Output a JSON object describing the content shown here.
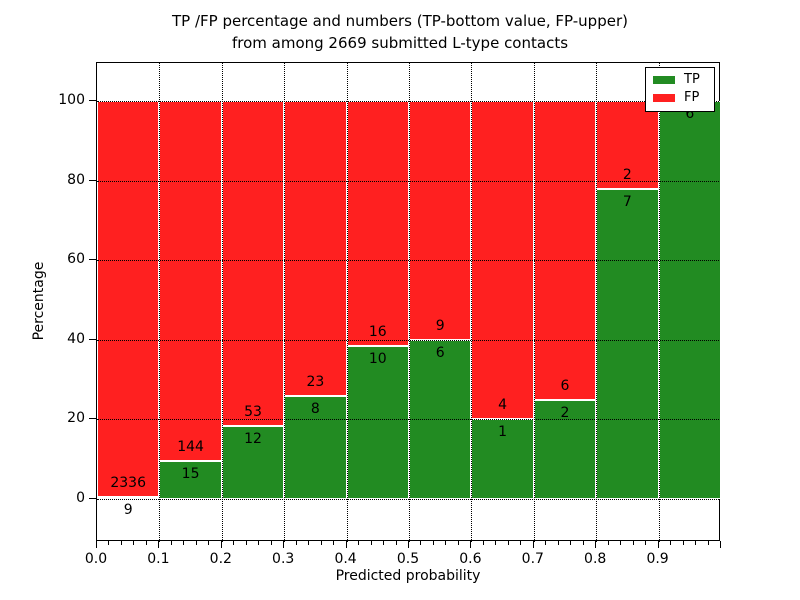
{
  "title": {
    "line1": "TP /FP percentage and numbers (TP-bottom value, FP-upper)",
    "line2": "from among 2669 submitted L-type contacts"
  },
  "axes": {
    "xlabel": "Predicted probability",
    "ylabel": "Percentage",
    "x_tick_labels": [
      "0.0",
      "0.1",
      "0.2",
      "0.3",
      "0.4",
      "0.5",
      "0.6",
      "0.7",
      "0.8",
      "0.9"
    ],
    "y_tick_labels": [
      "0",
      "20",
      "40",
      "60",
      "80",
      "100"
    ],
    "y_tick_values": [
      0,
      20,
      40,
      60,
      80,
      100
    ]
  },
  "legend": {
    "position": "upper right",
    "items": [
      {
        "label": "TP",
        "color": "#228b22"
      },
      {
        "label": "FP",
        "color": "#ff2020"
      }
    ]
  },
  "colors": {
    "tp_green": "#228b22",
    "fp_red": "#ff2020",
    "grid": "#000000",
    "bar_edge": "#ffffff"
  },
  "chart_data": {
    "type": "bar",
    "stacked": true,
    "normalized_to": 100,
    "title": "TP /FP percentage and numbers (TP-bottom value, FP-upper) from among 2669 submitted L-type contacts",
    "xlabel": "Predicted probability",
    "ylabel": "Percentage",
    "bin_edges": [
      0.0,
      0.1,
      0.2,
      0.3,
      0.4,
      0.5,
      0.6,
      0.7,
      0.8,
      0.9,
      1.0
    ],
    "categories": [
      "0.0-0.1",
      "0.1-0.2",
      "0.2-0.3",
      "0.3-0.4",
      "0.4-0.5",
      "0.5-0.6",
      "0.6-0.7",
      "0.7-0.8",
      "0.8-0.9",
      "0.9-1.0"
    ],
    "series": [
      {
        "name": "TP",
        "color": "#228b22",
        "counts": [
          9,
          15,
          12,
          8,
          10,
          6,
          1,
          2,
          7,
          6
        ]
      },
      {
        "name": "FP",
        "color": "#ff2020",
        "counts": [
          2336,
          144,
          53,
          23,
          16,
          9,
          4,
          6,
          2,
          0
        ]
      }
    ],
    "tp_percent": [
      0.38,
      9.43,
      18.46,
      25.81,
      38.46,
      40.0,
      20.0,
      25.0,
      77.78,
      100.0
    ],
    "total_submitted": 2669,
    "ylim": [
      -11,
      110
    ],
    "xlim": [
      0.0,
      1.0
    ],
    "grid": "dotted, drawn over bars",
    "legend_position": "upper right"
  }
}
